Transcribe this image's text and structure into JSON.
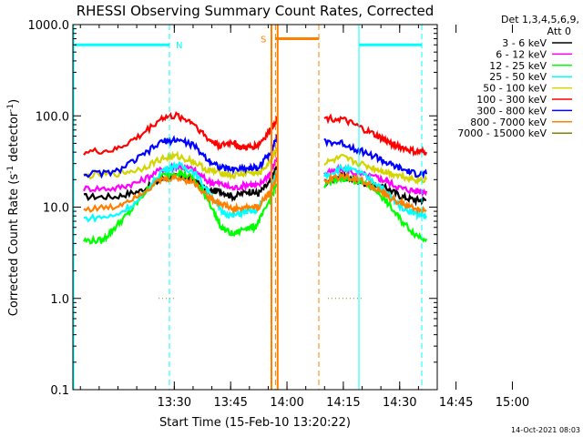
{
  "chart_data": {
    "type": "line",
    "title": "RHESSI Observing Summary Count Rates, Corrected",
    "xlabel": "Start Time (15-Feb-10 13:20:22)",
    "ylabel": "Corrected Count Rate (s",
    "ylabel_sup": "-1",
    "ylabel_tail": " detector",
    "ylabel_sup2": "-1",
    "ylabel_close": ")",
    "yscale": "log",
    "ylim": [
      0.1,
      1000
    ],
    "xlim_minutes": [
      13.0,
      163.0
    ],
    "x_ticks": [
      {
        "m": 23,
        "label": "13:30"
      },
      {
        "m": 38,
        "label": ""
      },
      {
        "m": 53,
        "label": "13:45"
      },
      {
        "m": 68,
        "label": ""
      },
      {
        "m": 83,
        "label": "14:00"
      },
      {
        "m": 98,
        "label": ""
      },
      {
        "m": 113,
        "label": "14:15"
      },
      {
        "m": 128,
        "label": ""
      },
      {
        "m": 143,
        "label": "14:30"
      },
      {
        "m": 158,
        "label": ""
      },
      {
        "m": 173,
        "label": "14:45"
      }
    ],
    "x_tick_labels": [
      {
        "m": 30,
        "label": "13:30"
      },
      {
        "m": 45,
        "label": "13:45"
      },
      {
        "m": 60,
        "label": "14:00"
      },
      {
        "m": 75,
        "label": "14:15"
      },
      {
        "m": 90,
        "label": "14:30"
      },
      {
        "m": 105,
        "label": "14:45"
      },
      {
        "m": 120,
        "label": "15:00"
      }
    ],
    "y_ticks": [
      {
        "v": 0.1,
        "label": "0.1"
      },
      {
        "v": 1,
        "label": "1.0"
      },
      {
        "v": 10,
        "label": "10.0"
      },
      {
        "v": 100,
        "label": "100.0"
      },
      {
        "v": 1000,
        "label": "1000.0"
      }
    ],
    "legend_header": [
      "Det 1,3,4,5,6,9,",
      "Att 0"
    ],
    "series": [
      {
        "name": "3 - 6 keV",
        "color": "#000000",
        "points": [
          [
            0,
            13
          ],
          [
            10,
            13
          ],
          [
            18,
            15
          ],
          [
            25,
            20
          ],
          [
            30,
            22
          ],
          [
            35,
            20
          ],
          [
            40,
            15
          ],
          [
            44,
            15
          ],
          [
            48,
            13
          ],
          [
            53,
            15
          ],
          [
            56,
            14
          ],
          [
            60,
            19
          ],
          [
            62,
            28
          ],
          [
            null,
            null
          ],
          [
            70,
            19
          ],
          [
            75,
            22
          ],
          [
            80,
            19
          ],
          [
            85,
            17
          ],
          [
            88,
            16
          ],
          [
            92,
            13
          ],
          [
            96,
            12
          ],
          [
            99,
            12
          ]
        ]
      },
      {
        "name": "6 - 12 keV",
        "color": "#ff00ff",
        "points": [
          [
            0,
            16
          ],
          [
            10,
            16
          ],
          [
            18,
            19
          ],
          [
            25,
            26
          ],
          [
            30,
            28
          ],
          [
            35,
            26
          ],
          [
            40,
            19
          ],
          [
            44,
            18
          ],
          [
            48,
            16
          ],
          [
            53,
            18
          ],
          [
            56,
            17
          ],
          [
            60,
            24
          ],
          [
            62,
            35
          ],
          [
            null,
            null
          ],
          [
            70,
            23
          ],
          [
            75,
            26
          ],
          [
            80,
            23
          ],
          [
            85,
            21
          ],
          [
            88,
            19
          ],
          [
            92,
            16
          ],
          [
            96,
            15
          ],
          [
            99,
            15
          ]
        ]
      },
      {
        "name": "12 - 25 keV",
        "color": "#00ff00",
        "points": [
          [
            0,
            4.3
          ],
          [
            6,
            4.3
          ],
          [
            10,
            6
          ],
          [
            15,
            9
          ],
          [
            20,
            15
          ],
          [
            25,
            22
          ],
          [
            30,
            24
          ],
          [
            35,
            21
          ],
          [
            40,
            12
          ],
          [
            44,
            6
          ],
          [
            48,
            5
          ],
          [
            52,
            6
          ],
          [
            55,
            6
          ],
          [
            58,
            9
          ],
          [
            62,
            18
          ],
          [
            null,
            null
          ],
          [
            70,
            17
          ],
          [
            75,
            21
          ],
          [
            80,
            19
          ],
          [
            85,
            15
          ],
          [
            88,
            11
          ],
          [
            92,
            7
          ],
          [
            96,
            5
          ],
          [
            99,
            4.5
          ]
        ]
      },
      {
        "name": "25 - 50 keV",
        "color": "#00ffff",
        "points": [
          [
            0,
            7.5
          ],
          [
            10,
            8
          ],
          [
            18,
            12
          ],
          [
            25,
            25
          ],
          [
            30,
            29
          ],
          [
            35,
            25
          ],
          [
            40,
            15
          ],
          [
            44,
            9
          ],
          [
            48,
            8
          ],
          [
            52,
            9
          ],
          [
            55,
            9
          ],
          [
            60,
            15
          ],
          [
            62,
            25
          ],
          [
            null,
            null
          ],
          [
            70,
            22
          ],
          [
            75,
            27
          ],
          [
            80,
            24
          ],
          [
            85,
            18
          ],
          [
            88,
            14
          ],
          [
            92,
            10
          ],
          [
            96,
            8.5
          ],
          [
            99,
            8
          ]
        ]
      },
      {
        "name": "50 - 100 keV",
        "color": "#d4d400",
        "points": [
          [
            0,
            22
          ],
          [
            10,
            23
          ],
          [
            18,
            26
          ],
          [
            25,
            34
          ],
          [
            30,
            36
          ],
          [
            35,
            32
          ],
          [
            40,
            25
          ],
          [
            44,
            24
          ],
          [
            48,
            22
          ],
          [
            53,
            24
          ],
          [
            56,
            23
          ],
          [
            60,
            32
          ],
          [
            62,
            45
          ],
          [
            null,
            null
          ],
          [
            70,
            30
          ],
          [
            75,
            35
          ],
          [
            80,
            30
          ],
          [
            85,
            26
          ],
          [
            88,
            24
          ],
          [
            92,
            22
          ],
          [
            96,
            20
          ],
          [
            99,
            20
          ]
        ]
      },
      {
        "name": "100 - 300 keV",
        "color": "#ff0000",
        "points": [
          [
            0,
            40
          ],
          [
            10,
            42
          ],
          [
            18,
            60
          ],
          [
            25,
            95
          ],
          [
            30,
            100
          ],
          [
            35,
            85
          ],
          [
            40,
            55
          ],
          [
            44,
            47
          ],
          [
            48,
            52
          ],
          [
            50,
            45
          ],
          [
            53,
            45
          ],
          [
            56,
            48
          ],
          [
            60,
            70
          ],
          [
            62,
            95
          ],
          [
            null,
            null
          ],
          [
            70,
            95
          ],
          [
            75,
            92
          ],
          [
            80,
            75
          ],
          [
            85,
            60
          ],
          [
            88,
            52
          ],
          [
            92,
            45
          ],
          [
            96,
            40
          ],
          [
            99,
            40
          ]
        ]
      },
      {
        "name": "300 - 800 keV",
        "color": "#0000ff",
        "points": [
          [
            0,
            23
          ],
          [
            10,
            24
          ],
          [
            18,
            35
          ],
          [
            25,
            52
          ],
          [
            30,
            55
          ],
          [
            35,
            48
          ],
          [
            40,
            33
          ],
          [
            44,
            27
          ],
          [
            48,
            26
          ],
          [
            53,
            27
          ],
          [
            56,
            27
          ],
          [
            60,
            40
          ],
          [
            62,
            60
          ],
          [
            null,
            null
          ],
          [
            70,
            52
          ],
          [
            75,
            50
          ],
          [
            80,
            42
          ],
          [
            85,
            35
          ],
          [
            88,
            30
          ],
          [
            92,
            26
          ],
          [
            96,
            23
          ],
          [
            99,
            23
          ]
        ]
      },
      {
        "name": "800 - 7000 keV",
        "color": "#ff8000",
        "points": [
          [
            0,
            9.5
          ],
          [
            10,
            10
          ],
          [
            18,
            14
          ],
          [
            25,
            20
          ],
          [
            30,
            21
          ],
          [
            35,
            19
          ],
          [
            40,
            13
          ],
          [
            44,
            11
          ],
          [
            48,
            9.5
          ],
          [
            53,
            10
          ],
          [
            56,
            10
          ],
          [
            60,
            15
          ],
          [
            62,
            22
          ],
          [
            null,
            null
          ],
          [
            70,
            19
          ],
          [
            75,
            22
          ],
          [
            80,
            20
          ],
          [
            85,
            16
          ],
          [
            88,
            13
          ],
          [
            92,
            11
          ],
          [
            96,
            9.5
          ],
          [
            99,
            9
          ]
        ]
      },
      {
        "name": "7000 - 15000 keV",
        "color": "#808000",
        "points": [
          [
            24,
            1.0
          ],
          [
            29,
            1.0
          ],
          [
            null,
            null
          ],
          [
            71,
            1.0
          ],
          [
            81,
            1.0
          ]
        ]
      }
    ],
    "annotations": [
      {
        "text": "N",
        "color": "#00ffff"
      },
      {
        "text": "S",
        "color": "#ff8000"
      }
    ],
    "footer": "14-Oct-2021 08:03"
  }
}
